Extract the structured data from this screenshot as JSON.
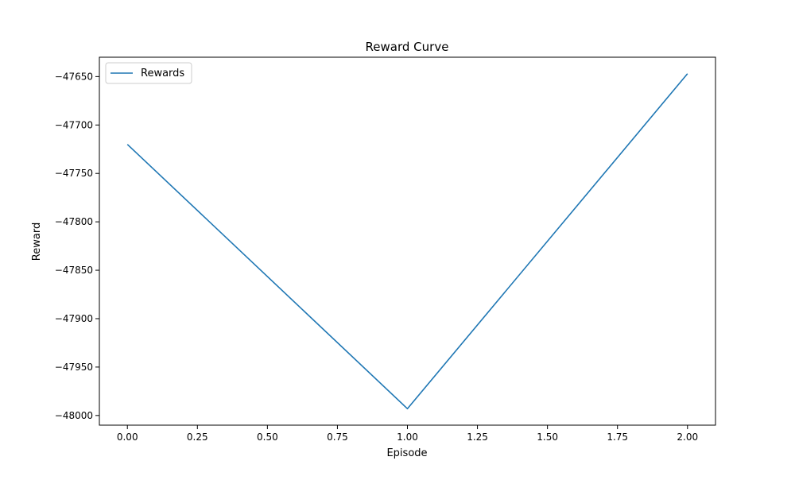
{
  "chart_data": {
    "type": "line",
    "title": "Reward Curve",
    "xlabel": "Episode",
    "ylabel": "Reward",
    "xlim": [
      -0.1,
      2.1
    ],
    "ylim": [
      -48010,
      -47630
    ],
    "x_ticks": [
      0.0,
      0.25,
      0.5,
      0.75,
      1.0,
      1.25,
      1.5,
      1.75,
      2.0
    ],
    "x_tick_labels": [
      "0.00",
      "0.25",
      "0.50",
      "0.75",
      "1.00",
      "1.25",
      "1.50",
      "1.75",
      "2.00"
    ],
    "y_ticks": [
      -48000,
      -47950,
      -47900,
      -47850,
      -47800,
      -47750,
      -47700,
      -47650
    ],
    "y_tick_labels": [
      "−48000",
      "−47950",
      "−47900",
      "−47850",
      "−47800",
      "−47750",
      "−47700",
      "−47650"
    ],
    "grid": false,
    "legend": "upper-left",
    "series": [
      {
        "name": "Rewards",
        "color": "#1f77b4",
        "x": [
          0,
          1,
          2
        ],
        "y": [
          -47720,
          -47993,
          -47647
        ]
      }
    ]
  }
}
